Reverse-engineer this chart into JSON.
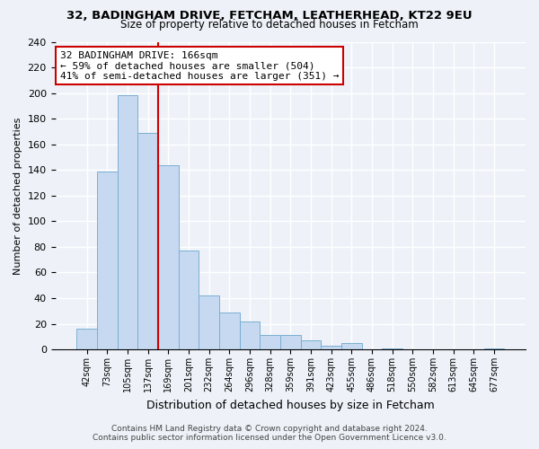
{
  "title1": "32, BADINGHAM DRIVE, FETCHAM, LEATHERHEAD, KT22 9EU",
  "title2": "Size of property relative to detached houses in Fetcham",
  "xlabel": "Distribution of detached houses by size in Fetcham",
  "ylabel": "Number of detached properties",
  "bar_labels": [
    "42sqm",
    "73sqm",
    "105sqm",
    "137sqm",
    "169sqm",
    "201sqm",
    "232sqm",
    "264sqm",
    "296sqm",
    "328sqm",
    "359sqm",
    "391sqm",
    "423sqm",
    "455sqm",
    "486sqm",
    "518sqm",
    "550sqm",
    "582sqm",
    "613sqm",
    "645sqm",
    "677sqm"
  ],
  "bar_values": [
    16,
    139,
    198,
    169,
    144,
    77,
    42,
    29,
    22,
    11,
    11,
    7,
    3,
    5,
    0,
    1,
    0,
    0,
    0,
    0,
    1
  ],
  "bar_color": "#c6d9f0",
  "bar_edge_color": "#7bafd4",
  "vline_color": "#cc0000",
  "annotation_title": "32 BADINGHAM DRIVE: 166sqm",
  "annotation_line1": "← 59% of detached houses are smaller (504)",
  "annotation_line2": "41% of semi-detached houses are larger (351) →",
  "annotation_box_edge": "#cc0000",
  "ylim": [
    0,
    240
  ],
  "yticks": [
    0,
    20,
    40,
    60,
    80,
    100,
    120,
    140,
    160,
    180,
    200,
    220,
    240
  ],
  "footnote1": "Contains HM Land Registry data © Crown copyright and database right 2024.",
  "footnote2": "Contains public sector information licensed under the Open Government Licence v3.0.",
  "bg_color": "#eef2f8",
  "plot_bg_color": "#eef2f8"
}
